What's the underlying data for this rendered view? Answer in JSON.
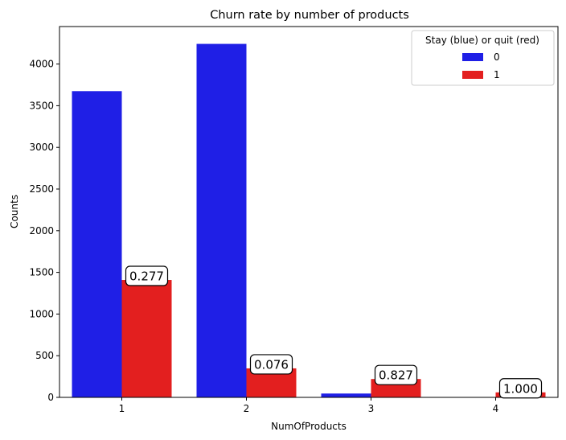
{
  "chart_data": {
    "type": "bar",
    "title": "Churn rate by number of products",
    "xlabel": "NumOfProducts",
    "ylabel": "Counts",
    "categories": [
      "1",
      "2",
      "3",
      "4"
    ],
    "ylim": [
      0,
      4450
    ],
    "yticks": [
      0,
      500,
      1000,
      1500,
      2000,
      2500,
      3000,
      3500,
      4000
    ],
    "grid": false,
    "legend": {
      "title": "Stay (blue) or quit (red)",
      "placement": "upper-right"
    },
    "series": [
      {
        "name": "0",
        "color": "#1f1fe6",
        "values": [
          3675,
          4242,
          46,
          0
        ]
      },
      {
        "name": "1",
        "color": "#e31f1f",
        "values": [
          1409,
          348,
          220,
          60
        ]
      }
    ],
    "annotations": [
      "0.277",
      "0.076",
      "0.827",
      "1.000"
    ]
  }
}
